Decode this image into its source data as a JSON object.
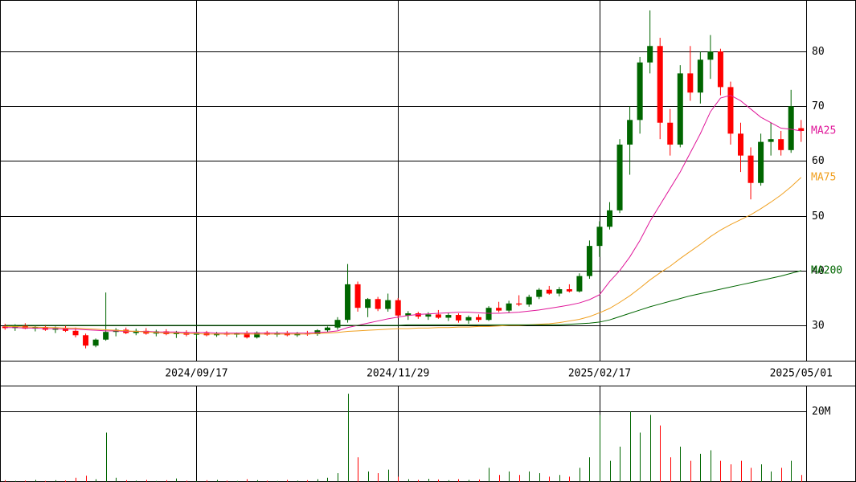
{
  "chart_data": [
    {
      "type": "candlestick",
      "categories": [
        null,
        null,
        null,
        null,
        null,
        null,
        null,
        null,
        null,
        null,
        null,
        null,
        null,
        null,
        null,
        null,
        null,
        null,
        null,
        "2024/09/17",
        null,
        null,
        null,
        null,
        null,
        null,
        null,
        null,
        null,
        null,
        null,
        null,
        null,
        null,
        null,
        null,
        null,
        null,
        null,
        "2024/11/29",
        null,
        null,
        null,
        null,
        null,
        null,
        null,
        null,
        null,
        null,
        null,
        null,
        null,
        null,
        null,
        null,
        null,
        null,
        null,
        "2025/02/17",
        null,
        null,
        null,
        null,
        null,
        null,
        null,
        null,
        null,
        null,
        null,
        null,
        null,
        null,
        null,
        null,
        null,
        null,
        null,
        "2025/05/01"
      ],
      "open": [
        29.8,
        29.5,
        29.9,
        29.4,
        29.7,
        29.2,
        29.5,
        29.0,
        28.2,
        26.3,
        27.4,
        28.8,
        29.2,
        28.6,
        29.0,
        28.5,
        28.9,
        28.4,
        28.7,
        28.3,
        28.6,
        28.2,
        28.5,
        28.3,
        28.6,
        27.8,
        28.7,
        28.3,
        28.6,
        28.2,
        28.5,
        28.4,
        29.1,
        29.6,
        31.0,
        37.5,
        33.2,
        34.8,
        33.0,
        34.6,
        31.8,
        32.2,
        31.6,
        32.0,
        31.4,
        31.9,
        30.9,
        31.5,
        31.0,
        33.2,
        32.7,
        34.0,
        33.8,
        35.2,
        36.5,
        35.8,
        36.6,
        36.2,
        39.0,
        44.5,
        48.0,
        51.0,
        63.0,
        67.5,
        78.0,
        81.0,
        67.0,
        63.0,
        76.0,
        72.5,
        78.5,
        80.0,
        73.5,
        65.0,
        61.0,
        56.0,
        63.5,
        64.0,
        62.0,
        66.0
      ],
      "high": [
        30.3,
        30.2,
        30.4,
        30.0,
        30.1,
        29.8,
        29.9,
        29.6,
        28.5,
        27.6,
        36.0,
        29.5,
        29.6,
        29.4,
        29.5,
        29.2,
        29.3,
        29.0,
        29.1,
        28.9,
        29.0,
        28.8,
        28.9,
        28.7,
        29.0,
        28.9,
        29.0,
        28.9,
        29.0,
        28.8,
        29.0,
        29.3,
        29.8,
        31.5,
        41.2,
        38.0,
        35.0,
        35.2,
        35.8,
        35.0,
        32.6,
        32.5,
        32.4,
        32.8,
        32.3,
        32.2,
        31.8,
        32.0,
        33.5,
        34.3,
        34.5,
        35.5,
        35.6,
        36.8,
        37.2,
        37.0,
        37.5,
        39.5,
        45.5,
        49.0,
        52.5,
        64.0,
        70.0,
        79.0,
        87.5,
        82.5,
        69.5,
        77.5,
        81.0,
        80.0,
        83.0,
        80.5,
        74.5,
        67.0,
        62.5,
        65.0,
        67.0,
        65.5,
        73.0,
        67.5
      ],
      "low": [
        29.2,
        29.0,
        29.3,
        28.9,
        29.0,
        28.6,
        28.8,
        27.8,
        25.8,
        26.0,
        27.2,
        28.0,
        28.4,
        28.2,
        28.3,
        28.0,
        28.2,
        27.7,
        28.0,
        27.5,
        28.0,
        27.9,
        28.0,
        27.8,
        27.6,
        27.6,
        28.1,
        27.9,
        28.0,
        27.9,
        28.1,
        28.1,
        28.8,
        29.2,
        30.5,
        32.5,
        31.5,
        32.6,
        32.5,
        31.3,
        31.0,
        31.2,
        31.0,
        31.2,
        30.8,
        30.5,
        30.3,
        30.6,
        30.8,
        32.4,
        32.3,
        33.5,
        33.4,
        34.8,
        35.6,
        35.3,
        36.0,
        36.0,
        38.5,
        42.5,
        47.5,
        50.5,
        57.5,
        65.0,
        76.0,
        64.0,
        61.0,
        62.5,
        71.0,
        70.5,
        75.0,
        72.0,
        63.0,
        58.0,
        53.0,
        55.5,
        61.0,
        61.0,
        61.5,
        63.5
      ],
      "close": [
        29.5,
        29.9,
        29.4,
        29.7,
        29.2,
        29.5,
        29.0,
        28.2,
        26.3,
        27.4,
        28.8,
        29.2,
        28.6,
        29.0,
        28.5,
        28.9,
        28.4,
        28.7,
        28.3,
        28.6,
        28.2,
        28.5,
        28.3,
        28.6,
        27.8,
        28.7,
        28.3,
        28.6,
        28.2,
        28.5,
        28.4,
        29.1,
        29.6,
        31.0,
        37.5,
        33.2,
        34.8,
        33.0,
        34.6,
        31.8,
        32.2,
        31.6,
        32.0,
        31.4,
        31.9,
        30.9,
        31.5,
        31.0,
        33.2,
        32.7,
        34.0,
        33.8,
        35.2,
        36.5,
        35.8,
        36.6,
        36.2,
        39.0,
        44.5,
        48.0,
        51.0,
        63.0,
        67.5,
        78.0,
        81.0,
        67.0,
        63.0,
        76.0,
        72.5,
        78.5,
        80.0,
        73.5,
        65.0,
        61.0,
        56.0,
        63.5,
        64.0,
        62.0,
        70.0,
        65.5
      ],
      "up_color": "#006600",
      "down_color": "#ff0000",
      "series": [
        {
          "name": "MA25",
          "color": "#e0189a",
          "values": [
            29.6,
            29.6,
            29.5,
            29.5,
            29.4,
            29.4,
            29.3,
            29.3,
            29.2,
            29.1,
            29.0,
            29.0,
            28.9,
            28.9,
            28.9,
            28.8,
            28.8,
            28.8,
            28.7,
            28.7,
            28.7,
            28.6,
            28.6,
            28.6,
            28.6,
            28.6,
            28.6,
            28.6,
            28.6,
            28.6,
            28.6,
            28.7,
            28.8,
            29.0,
            29.6,
            30.0,
            30.4,
            30.8,
            31.2,
            31.5,
            31.8,
            32.0,
            32.1,
            32.2,
            32.3,
            32.4,
            32.4,
            32.3,
            32.2,
            32.2,
            32.3,
            32.4,
            32.6,
            32.8,
            33.1,
            33.4,
            33.7,
            34.1,
            34.7,
            35.6,
            38.0,
            40.0,
            42.5,
            45.5,
            49.0,
            52.0,
            55.0,
            58.0,
            61.5,
            65.0,
            69.0,
            71.5,
            72.0,
            71.0,
            69.5,
            68.0,
            67.0,
            66.0,
            65.8,
            65.5
          ]
        },
        {
          "name": "MA75",
          "color": "#f0a020",
          "values": [
            29.8,
            29.8,
            29.7,
            29.7,
            29.6,
            29.6,
            29.5,
            29.5,
            29.4,
            29.3,
            29.2,
            29.1,
            29.0,
            28.9,
            28.8,
            28.7,
            28.6,
            28.6,
            28.5,
            28.5,
            28.4,
            28.4,
            28.4,
            28.4,
            28.4,
            28.4,
            28.4,
            28.4,
            28.4,
            28.4,
            28.4,
            28.5,
            28.6,
            28.7,
            28.9,
            29.0,
            29.1,
            29.2,
            29.3,
            29.4,
            29.4,
            29.5,
            29.5,
            29.6,
            29.6,
            29.7,
            29.7,
            29.8,
            29.8,
            29.9,
            30.0,
            30.0,
            30.1,
            30.2,
            30.3,
            30.5,
            30.8,
            31.1,
            31.6,
            32.3,
            33.1,
            34.2,
            35.4,
            36.8,
            38.3,
            39.6,
            40.8,
            42.2,
            43.5,
            44.8,
            46.2,
            47.4,
            48.4,
            49.3,
            50.2,
            51.3,
            52.5,
            53.8,
            55.3,
            57.0
          ]
        },
        {
          "name": "MA200",
          "color": "#006600",
          "values": [
            30.0,
            30.0,
            30.0,
            30.0,
            30.0,
            30.0,
            30.0,
            30.0,
            30.0,
            30.0,
            30.0,
            30.0,
            30.0,
            30.0,
            30.0,
            30.0,
            30.0,
            30.0,
            30.0,
            30.0,
            30.0,
            30.0,
            30.0,
            30.0,
            30.0,
            30.0,
            30.0,
            30.0,
            30.0,
            30.0,
            30.0,
            30.0,
            30.0,
            30.0,
            30.0,
            30.0,
            30.0,
            30.0,
            30.0,
            30.0,
            30.1,
            30.1,
            30.1,
            30.1,
            30.1,
            30.1,
            30.1,
            30.1,
            30.1,
            30.1,
            30.1,
            30.1,
            30.1,
            30.1,
            30.1,
            30.1,
            30.2,
            30.3,
            30.4,
            30.6,
            31.0,
            31.6,
            32.2,
            32.8,
            33.4,
            33.9,
            34.4,
            34.9,
            35.4,
            35.8,
            36.2,
            36.6,
            37.0,
            37.4,
            37.8,
            38.2,
            38.6,
            39.0,
            39.5,
            40.0
          ]
        }
      ],
      "ylim": [
        23.55,
        89.4
      ],
      "yticks": [
        30,
        40,
        50,
        60,
        70,
        80
      ],
      "grid": true
    },
    {
      "type": "bar",
      "values": [
        0.5,
        0.3,
        0.4,
        0.6,
        0.3,
        0.5,
        0.4,
        1.2,
        1.8,
        0.8,
        14,
        1.2,
        0.5,
        0.4,
        0.6,
        0.3,
        0.5,
        1.0,
        0.4,
        0.3,
        0.5,
        0.6,
        0.4,
        0.3,
        0.8,
        0.5,
        0.4,
        0.3,
        0.6,
        0.4,
        0.5,
        0.8,
        1.2,
        2.5,
        25,
        7,
        3,
        2.5,
        3.5,
        1.5,
        0.8,
        0.6,
        0.9,
        0.7,
        0.5,
        0.8,
        0.6,
        0.7,
        4,
        2,
        3,
        2,
        3,
        2.5,
        1.5,
        2,
        1.5,
        4,
        7,
        19,
        6,
        10,
        20,
        14,
        19,
        16,
        7,
        10,
        6,
        8,
        9,
        6,
        5,
        6,
        4,
        5,
        3,
        4,
        6,
        2
      ],
      "ylim": [
        0,
        27.3
      ],
      "yticks": [
        {
          "value": 20,
          "label": "20M"
        }
      ],
      "grid": true
    }
  ]
}
